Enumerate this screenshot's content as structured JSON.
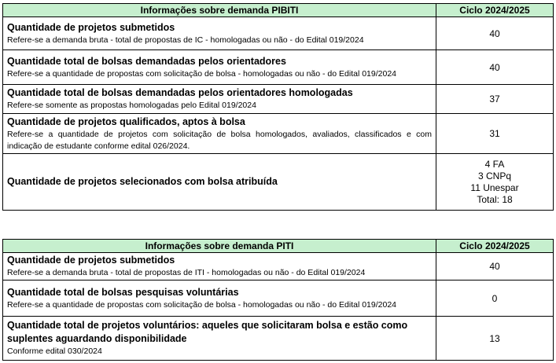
{
  "pibiti": {
    "header": {
      "label": "Informações sobre demanda PIBITI",
      "cycle": "Ciclo 2024/2025"
    },
    "rows": [
      {
        "title": "Quantidade de projetos submetidos",
        "desc": "Refere-se a demanda bruta - total de propostas de IC - homologadas ou não - do Edital 019/2024",
        "value": "40"
      },
      {
        "title": "Quantidade total de bolsas demandadas pelos orientadores",
        "desc": "Refere-se a quantidade de propostas com solicitação de bolsa - homologadas ou não - do Edital 019/2024",
        "value": "40"
      },
      {
        "title": "Quantidade total de bolsas demandadas pelos orientadores homologadas",
        "desc": "Refere-se somente as propostas homologadas pelo Edital 019/2024",
        "value": "37"
      },
      {
        "title": "Quantidade de projetos qualificados, aptos à bolsa",
        "desc": "Refere-se a quantidade de projetos com solicitação de bolsa homologados, avaliados, classificados e com indicação de estudante conforme edital 026/2024.",
        "value": "31"
      },
      {
        "title": "Quantidade de projetos selecionados com bolsa atribuída",
        "values": [
          "4 FA",
          "3 CNPq",
          "11 Unespar",
          "Total: 18"
        ]
      }
    ]
  },
  "piti": {
    "header": {
      "label": "Informações sobre demanda PITI",
      "cycle": "Ciclo 2024/2025"
    },
    "rows": [
      {
        "title": "Quantidade de projetos submetidos",
        "desc": "Refere-se a demanda bruta - total de propostas de ITI - homologadas ou não - do Edital 019/2024",
        "value": "40"
      },
      {
        "title": "Quantidade total de bolsas pesquisas voluntárias",
        "desc": "Refere-se a quantidade de propostas com solicitação de bolsa - homologadas ou não - do Edital 019/2024",
        "value": "0"
      },
      {
        "title": "Quantidade total de projetos voluntários: aqueles que solicitaram bolsa e estão como suplentes aguardando disponibilidade",
        "desc": "Conforme edital 030/2024",
        "value": "13"
      }
    ]
  }
}
